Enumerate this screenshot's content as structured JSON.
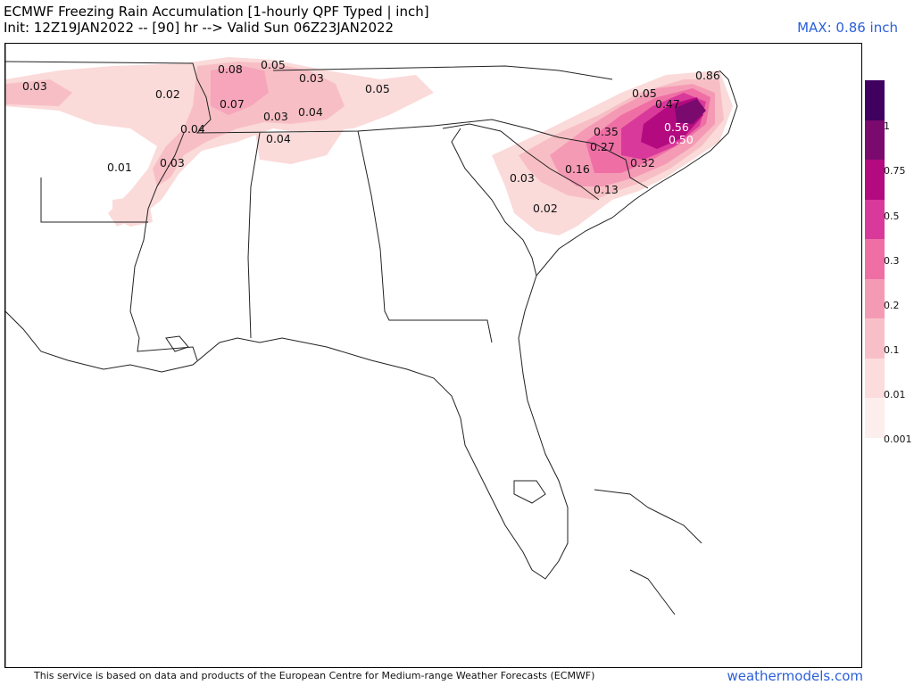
{
  "header": {
    "title_line1": "ECMWF Freezing Rain Accumulation [1-hourly QPF Typed | inch]",
    "title_line2": "Init: 12Z19JAN2022 -- [90] hr --> Valid Sun 06Z23JAN2022",
    "max_label": "MAX: 0.86 inch"
  },
  "legend": {
    "ticks": [
      "1",
      "0.75",
      "0.5",
      "0.3",
      "0.2",
      "0.1",
      "0.01",
      "0.001"
    ],
    "colors": [
      "#3f0060",
      "#7a0a6e",
      "#b40a7f",
      "#d8399a",
      "#ef6fa5",
      "#f59ab5",
      "#f9bfc9",
      "#fcdcdc",
      "#fdeeee"
    ]
  },
  "map_values": [
    {
      "text": "0.03",
      "color": "dark"
    },
    {
      "text": "0.08",
      "color": "dark"
    },
    {
      "text": "0.05",
      "color": "dark"
    },
    {
      "text": "0.03",
      "color": "dark"
    },
    {
      "text": "0.02",
      "color": "dark"
    },
    {
      "text": "0.07",
      "color": "dark"
    },
    {
      "text": "0.03",
      "color": "dark"
    },
    {
      "text": "0.04",
      "color": "dark"
    },
    {
      "text": "0.05",
      "color": "dark"
    },
    {
      "text": "0.04",
      "color": "dark"
    },
    {
      "text": "0.04",
      "color": "dark"
    },
    {
      "text": "0.01",
      "color": "dark"
    },
    {
      "text": "0.03",
      "color": "dark"
    },
    {
      "text": "0.05",
      "color": "dark"
    },
    {
      "text": "0.47",
      "color": "dark"
    },
    {
      "text": "0.86",
      "color": "dark"
    },
    {
      "text": "0.35",
      "color": "dark"
    },
    {
      "text": "0.56",
      "color": "white"
    },
    {
      "text": "0.50",
      "color": "white"
    },
    {
      "text": "0.27",
      "color": "dark"
    },
    {
      "text": "0.16",
      "color": "dark"
    },
    {
      "text": "0.32",
      "color": "dark"
    },
    {
      "text": "0.03",
      "color": "dark"
    },
    {
      "text": "0.13",
      "color": "dark"
    },
    {
      "text": "0.02",
      "color": "dark"
    }
  ],
  "footer": {
    "disclaimer": "This service is based on data and products of the European Centre for Medium-range Weather Forecasts (ECMWF)",
    "site": "weathermodels.com"
  }
}
